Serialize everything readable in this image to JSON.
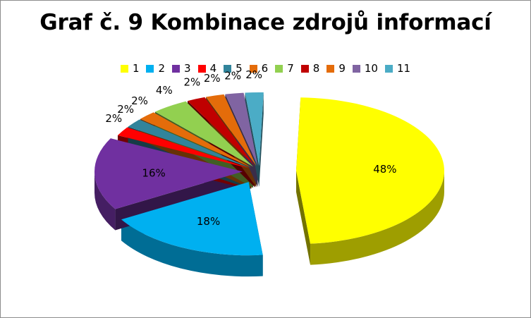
{
  "chart_data": {
    "type": "pie",
    "title": "Graf č. 9 Kombinace zdrojů informací",
    "categories": [
      "1",
      "2",
      "3",
      "4",
      "5",
      "6",
      "7",
      "8",
      "9",
      "10",
      "11"
    ],
    "values": [
      48,
      18,
      16,
      2,
      2,
      2,
      4,
      2,
      2,
      2,
      2
    ],
    "labels": [
      "48%",
      "18%",
      "16%",
      "2%",
      "2%",
      "2%",
      "4%",
      "2%",
      "2%",
      "2%",
      "2%"
    ],
    "colors": [
      "#ffff00",
      "#00b0f0",
      "#7030a0",
      "#ff0000",
      "#31849b",
      "#e46c0a",
      "#92d050",
      "#c00000",
      "#e46c0a",
      "#8064a2",
      "#4bacc6"
    ],
    "legend_position": "top",
    "exploded": true,
    "style": "3d"
  }
}
